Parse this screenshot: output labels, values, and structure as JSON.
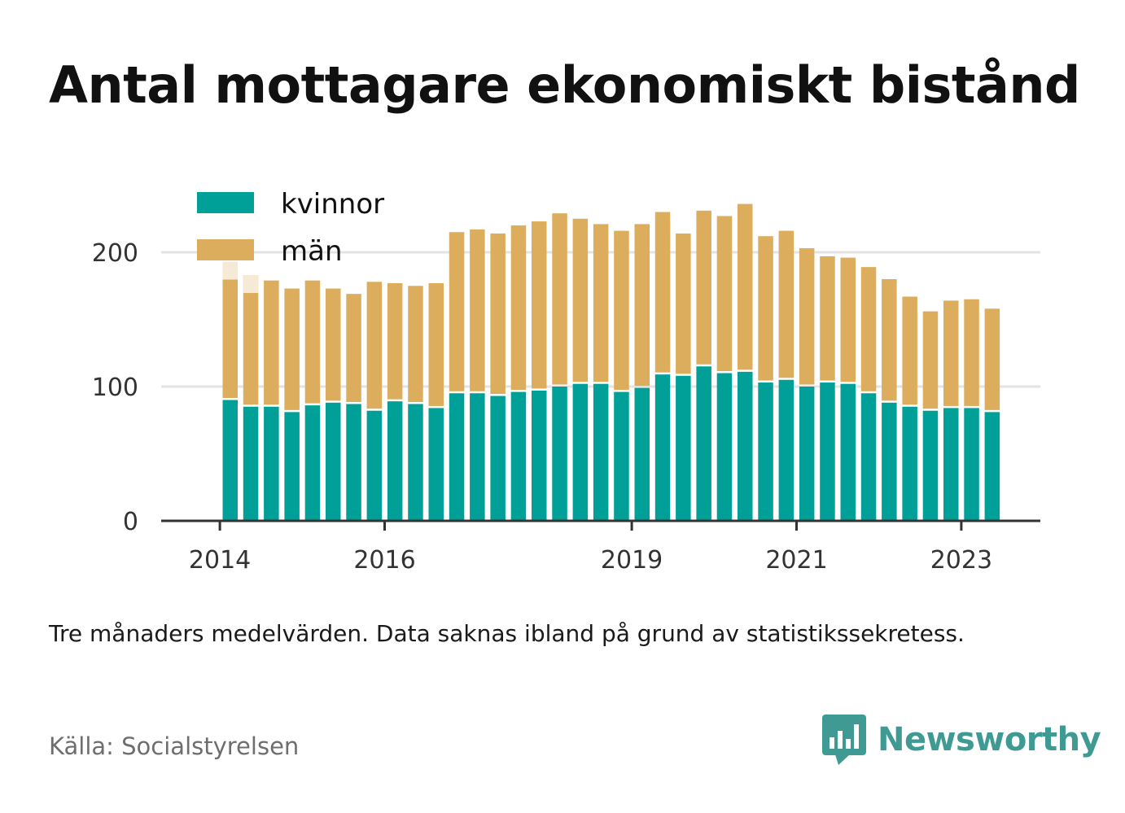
{
  "title": "Antal mottagare ekonomiskt bistånd",
  "subtitle": "Tre månaders medelvärden. Data saknas ibland på grund av statistikssekretess.",
  "source": "Källa: Socialstyrelsen",
  "brand": {
    "name": "Newsworthy",
    "icon": "bar-chart-speech-bubble-icon",
    "color": "#3f9a94"
  },
  "chart_data": {
    "type": "bar",
    "stacked": true,
    "grid": true,
    "legend_position": "top-left",
    "ylim": [
      0,
      240
    ],
    "yticks": [
      "0",
      "100",
      "200"
    ],
    "ytick_values": [
      0,
      100,
      200
    ],
    "xtick_labels": [
      "2014",
      "2016",
      "2019",
      "2021",
      "2023"
    ],
    "xtick_at_bar": [
      -0.5,
      7.5,
      19.5,
      27.5,
      35.5
    ],
    "first_bars_faded": 2,
    "series": [
      {
        "name": "kvinnor",
        "color": "#00a098",
        "values": [
          90,
          85,
          85,
          81,
          86,
          88,
          87,
          82,
          89,
          87,
          84,
          95,
          95,
          93,
          96,
          97,
          100,
          102,
          102,
          96,
          99,
          109,
          108,
          115,
          110,
          111,
          103,
          105,
          100,
          103,
          102,
          95,
          88,
          85,
          82,
          84,
          84,
          81
        ]
      },
      {
        "name": "män",
        "color": "#dbad5c",
        "values": [
          103,
          98,
          94,
          92,
          93,
          85,
          82,
          96,
          88,
          88,
          93,
          120,
          122,
          121,
          124,
          126,
          129,
          123,
          119,
          120,
          122,
          121,
          106,
          116,
          117,
          125,
          109,
          111,
          103,
          94,
          94,
          94,
          92,
          82,
          74,
          80,
          81,
          77
        ]
      }
    ]
  }
}
